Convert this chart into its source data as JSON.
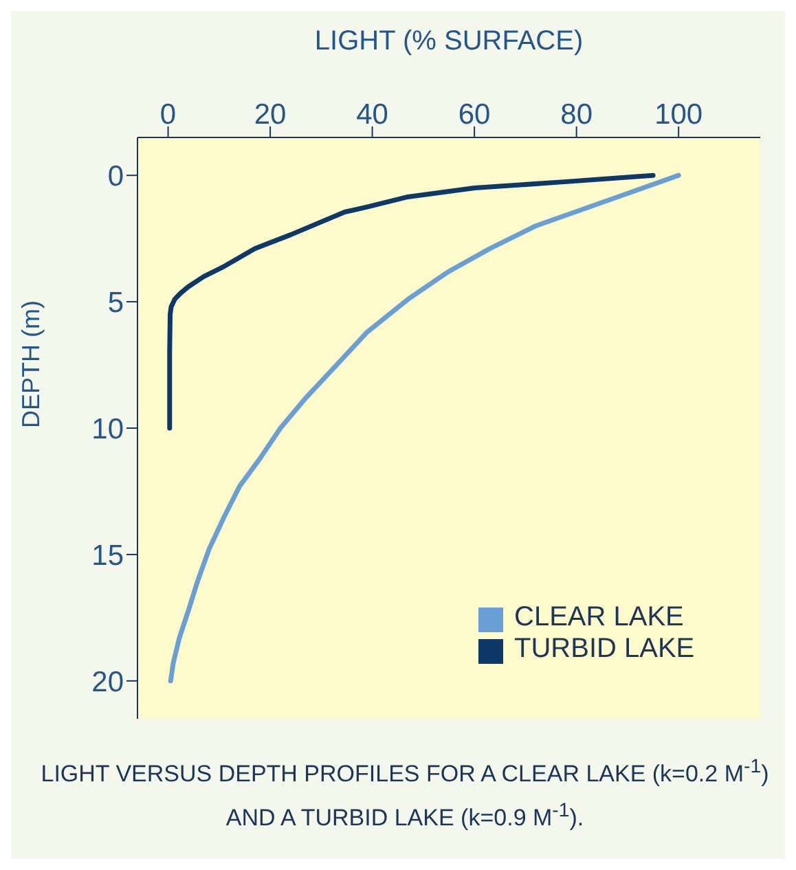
{
  "chart_data": {
    "type": "line",
    "xlabel": "LIGHT (% SURFACE)",
    "ylabel": "DEPTH (m)",
    "xlim": [
      -6,
      116
    ],
    "xticks": [
      0,
      20,
      40,
      60,
      80,
      100
    ],
    "ylim": [
      21.5,
      -1.5
    ],
    "yticks": [
      0,
      5,
      10,
      15,
      20
    ],
    "legend": "bottom right",
    "annotations": [
      "LIGHT VERSUS DEPTH PROFILES FOR A CLEAR LAKE (k=0.2 M$^{-1}$) AND A TURBID LAKE (k=0.9 M$^{-1}$)."
    ],
    "series": [
      {
        "name": "CLEAR LAKE",
        "color": "#6a9fd6",
        "x": [
          100,
          86,
          72,
          63,
          55,
          47,
          39,
          33,
          27,
          22,
          18,
          14,
          11,
          8,
          5.7,
          4,
          2.2,
          1,
          0.5
        ],
        "values": [
          0,
          1,
          2,
          2.9,
          3.8,
          4.9,
          6.2,
          7.5,
          8.8,
          10,
          11.2,
          12.3,
          13.5,
          14.8,
          16.1,
          17.2,
          18.3,
          19.3,
          20
        ]
      },
      {
        "name": "TURBID LAKE",
        "color": "#0d3868",
        "x": [
          95,
          78,
          60,
          47,
          39,
          34.6,
          24,
          17,
          11,
          7,
          4,
          2.5,
          1.3,
          0.6,
          0.4,
          0.3,
          0.3
        ],
        "values": [
          0,
          0.25,
          0.5,
          0.85,
          1.25,
          1.45,
          2.35,
          2.9,
          3.6,
          4,
          4.4,
          4.65,
          4.9,
          5.2,
          5.5,
          7,
          10
        ]
      }
    ]
  }
}
